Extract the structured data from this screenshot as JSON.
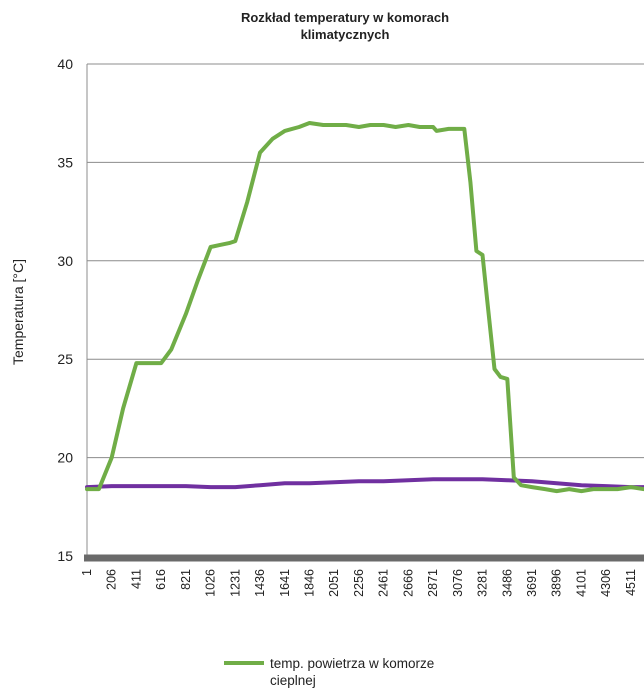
{
  "chart_data": {
    "type": "line",
    "title": [
      "Rozkład temperatury w komorach",
      "klimatycznych"
    ],
    "ylabel": "Temperatura [°C]",
    "xlabel": "",
    "ylim": [
      15,
      40
    ],
    "yticks": [
      15,
      20,
      25,
      30,
      35,
      40
    ],
    "xticks": [
      1,
      206,
      411,
      616,
      821,
      1026,
      1231,
      1436,
      1641,
      1846,
      2051,
      2256,
      2461,
      2666,
      2871,
      3076,
      3281,
      3486,
      3691,
      3896,
      4101,
      4306,
      4511
    ],
    "xlim": [
      1,
      4620
    ],
    "grid": "horizontal",
    "legend": {
      "placement": "bottom"
    },
    "series": [
      {
        "name": "temp. powietrza w komorze cieplnej",
        "legend_lines": [
          "temp. powietrza w komorze",
          "cieplnej"
        ],
        "color": "#70ad47",
        "x": [
          1,
          100,
          206,
          300,
          411,
          520,
          616,
          700,
          821,
          920,
          1026,
          1100,
          1180,
          1231,
          1330,
          1436,
          1540,
          1641,
          1760,
          1846,
          1960,
          2051,
          2150,
          2256,
          2350,
          2461,
          2560,
          2666,
          2760,
          2871,
          2900,
          3000,
          3076,
          3130,
          3180,
          3230,
          3281,
          3320,
          3380,
          3430,
          3486,
          3540,
          3600,
          3691,
          3800,
          3896,
          4000,
          4101,
          4200,
          4306,
          4400,
          4511,
          4620
        ],
        "y": [
          18.4,
          18.4,
          20.0,
          22.5,
          24.8,
          24.8,
          24.8,
          25.5,
          27.3,
          29.0,
          30.7,
          30.8,
          30.9,
          31.0,
          33.0,
          35.5,
          36.2,
          36.6,
          36.8,
          37.0,
          36.9,
          36.9,
          36.9,
          36.8,
          36.9,
          36.9,
          36.8,
          36.9,
          36.8,
          36.8,
          36.6,
          36.7,
          36.7,
          36.7,
          34.0,
          30.5,
          30.3,
          28.0,
          24.5,
          24.1,
          24.0,
          19.0,
          18.6,
          18.5,
          18.4,
          18.3,
          18.4,
          18.3,
          18.4,
          18.4,
          18.4,
          18.5,
          18.4
        ]
      },
      {
        "name": "",
        "color": "#7030a0",
        "x": [
          1,
          206,
          411,
          616,
          821,
          1026,
          1231,
          1436,
          1641,
          1846,
          2051,
          2256,
          2461,
          2666,
          2871,
          3076,
          3281,
          3486,
          3691,
          3896,
          4101,
          4306,
          4511,
          4620
        ],
        "y": [
          18.5,
          18.55,
          18.55,
          18.55,
          18.55,
          18.5,
          18.5,
          18.6,
          18.7,
          18.7,
          18.75,
          18.8,
          18.8,
          18.85,
          18.9,
          18.9,
          18.9,
          18.85,
          18.8,
          18.7,
          18.6,
          18.55,
          18.5,
          18.5
        ]
      }
    ]
  }
}
